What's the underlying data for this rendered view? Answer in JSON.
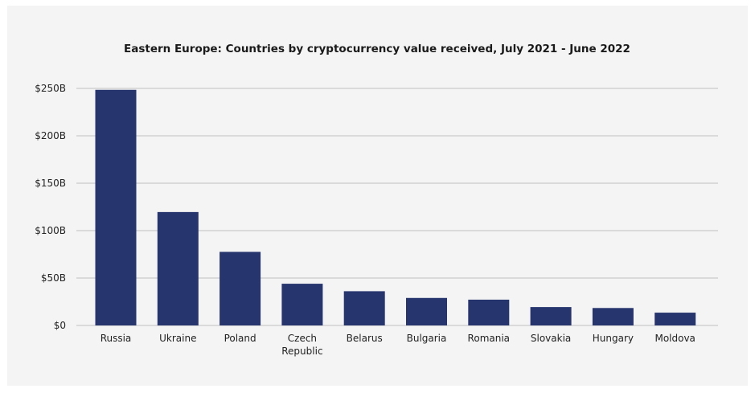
{
  "chart_data": {
    "type": "bar",
    "title": "Eastern Europe: Countries by cryptocurrency value received, July 2021 - June 2022",
    "xlabel": "",
    "ylabel": "",
    "categories": [
      "Russia",
      "Ukraine",
      "Poland",
      "Czech Republic",
      "Belarus",
      "Bulgaria",
      "Romania",
      "Slovakia",
      "Hungary",
      "Moldova"
    ],
    "category_lines": [
      [
        "Russia"
      ],
      [
        "Ukraine"
      ],
      [
        "Poland"
      ],
      [
        "Czech",
        "Republic"
      ],
      [
        "Belarus"
      ],
      [
        "Bulgaria"
      ],
      [
        "Romania"
      ],
      [
        "Slovakia"
      ],
      [
        "Hungary"
      ],
      [
        "Moldova"
      ]
    ],
    "values": [
      248.5,
      119.6,
      77.6,
      44.0,
      36.1,
      29.0,
      27.2,
      19.4,
      18.4,
      13.5
    ],
    "unit": "billion USD",
    "ylim": [
      0,
      250
    ],
    "yticks": [
      0,
      50,
      100,
      150,
      200,
      250
    ],
    "ytick_labels": [
      "$0",
      "$50B",
      "$100B",
      "$150B",
      "$200B",
      "$250B"
    ],
    "grid": "horizontal",
    "colors": {
      "bar": "#27356f",
      "grid": "#c9c9c9",
      "background": "#f4f4f4"
    }
  }
}
